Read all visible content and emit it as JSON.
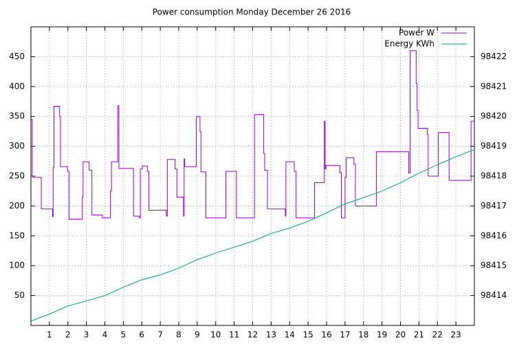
{
  "chart_data": {
    "type": "line",
    "title": "Power consumption Monday December 26 2016",
    "xlim": [
      0,
      24
    ],
    "xticks": [
      1,
      2,
      3,
      4,
      5,
      6,
      7,
      8,
      9,
      10,
      11,
      12,
      13,
      14,
      15,
      16,
      17,
      18,
      19,
      20,
      21,
      22,
      23
    ],
    "ylim": [
      0,
      500
    ],
    "yticks": [
      50,
      100,
      150,
      200,
      250,
      300,
      350,
      400,
      450
    ],
    "y2lim": [
      98413,
      98423
    ],
    "y2ticks": [
      98414,
      98415,
      98416,
      98417,
      98418,
      98419,
      98420,
      98421,
      98422
    ],
    "grid": true,
    "legend": "top-right",
    "series": [
      {
        "name": "Power W",
        "color": "#9400d3",
        "steps": true,
        "x": [
          0,
          0.07,
          0.1,
          0.56,
          1.17,
          1.2,
          1.25,
          1.55,
          1.6,
          1.98,
          2.06,
          2.78,
          2.82,
          3.15,
          3.3,
          3.87,
          4.3,
          4.36,
          4.7,
          4.76,
          5.55,
          5.87,
          5.92,
          6.03,
          6.3,
          6.38,
          7.33,
          7.38,
          7.8,
          7.9,
          8.26,
          8.29,
          8.32,
          8.95,
          9.15,
          9.2,
          9.47,
          10.55,
          11.12,
          12.1,
          12.6,
          12.65,
          12.8,
          13.77,
          13.8,
          14.25,
          14.35,
          15.35,
          15.88,
          15.92,
          15.96,
          16.72,
          16.8,
          17.0,
          17.06,
          17.48,
          17.56,
          18.7,
          20.45,
          20.52,
          20.85,
          20.9,
          20.95,
          21.45,
          21.5,
          22.05,
          22.63,
          23.82,
          24
        ],
        "values": [
          345,
          250,
          248,
          195,
          182,
          265,
          367,
          350,
          266,
          258,
          178,
          215,
          274,
          260,
          185,
          180,
          225,
          274,
          368,
          263,
          183,
          180,
          262,
          267,
          258,
          193,
          183,
          278,
          262,
          215,
          183,
          279,
          266,
          350,
          325,
          257,
          180,
          258,
          180,
          353,
          288,
          260,
          195,
          183,
          274,
          258,
          180,
          239,
          342,
          262,
          268,
          256,
          180,
          248,
          281,
          270,
          200,
          291,
          255,
          460,
          405,
          360,
          330,
          320,
          250,
          323,
          243,
          342,
          342
        ]
      },
      {
        "name": "Energy KWh",
        "color": "#009e73",
        "axis": "y2",
        "x": [
          0,
          1,
          2,
          3,
          4,
          5,
          6,
          7,
          8,
          9,
          10,
          11,
          12,
          13,
          14,
          15,
          16,
          17,
          18,
          19,
          20,
          21,
          22,
          23,
          24
        ],
        "values": [
          98413.15,
          98413.38,
          98413.65,
          98413.82,
          98414.0,
          98414.28,
          98414.53,
          98414.69,
          98414.92,
          98415.2,
          98415.43,
          98415.62,
          98415.82,
          98416.08,
          98416.26,
          98416.49,
          98416.77,
          98417.07,
          98417.28,
          98417.5,
          98417.78,
          98418.1,
          98418.38,
          98418.65,
          98418.89
        ]
      }
    ]
  }
}
